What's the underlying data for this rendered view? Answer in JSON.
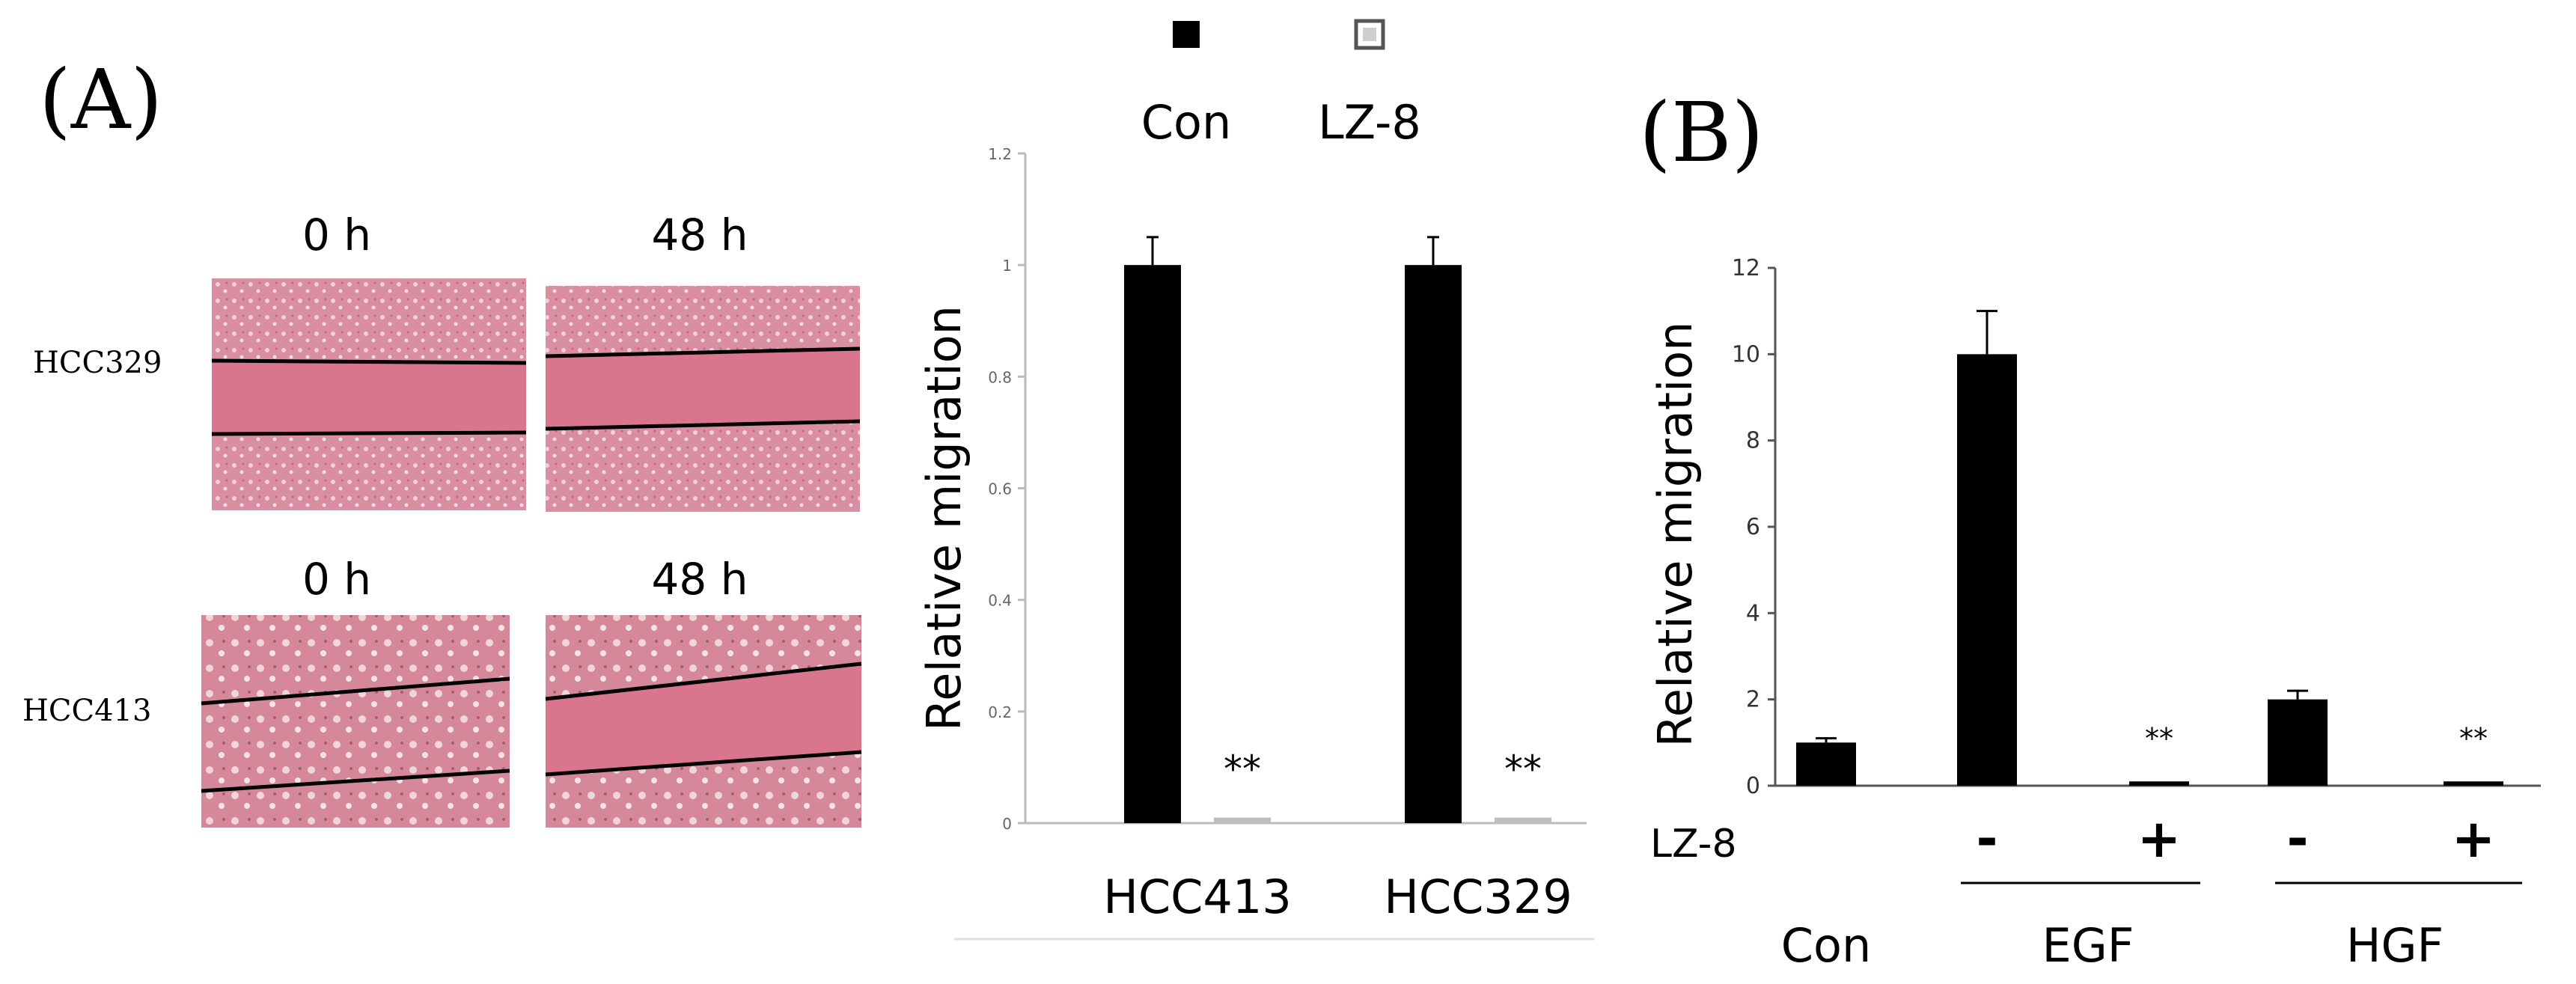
{
  "panel_a": {
    "label": "(A)",
    "time_labels": [
      "0 h",
      "48 h",
      "0 h",
      "48 h"
    ],
    "row_labels": [
      "HCC329",
      "HCC413"
    ]
  },
  "panel_b": {
    "label": "(B)"
  },
  "colors": {
    "con": "#000000",
    "lz8": "#bfbfbf",
    "tissue": "#d98ea2",
    "gap": "#d9768e"
  },
  "chart_data": [
    {
      "type": "bar",
      "categories": [
        "HCC413",
        "HCC329"
      ],
      "series": [
        {
          "name": "Con",
          "values": [
            1.0,
            1.0
          ],
          "errors": [
            0.05,
            0.05
          ]
        },
        {
          "name": "LZ-8",
          "values": [
            0.01,
            0.01
          ],
          "errors": [
            0,
            0
          ]
        }
      ],
      "ylabel": "Relative migration",
      "ylim": [
        0,
        1.2
      ],
      "yticks": [
        "0",
        "0.2",
        "0.4",
        "0.6",
        "0.8",
        "1",
        "1.2"
      ],
      "annotations": [
        "**",
        "**"
      ],
      "legend": "top"
    },
    {
      "type": "bar",
      "groups": [
        "Con",
        "EGF",
        "HGF"
      ],
      "treatment_row_label": "LZ-8",
      "treatment_signs": [
        "-",
        "+",
        "-",
        "+"
      ],
      "values": [
        1.0,
        10.0,
        0.1,
        2.0,
        0.1
      ],
      "errors": [
        0.1,
        1.0,
        0,
        0.2,
        0
      ],
      "ylabel": "Relative migration",
      "ylim": [
        0,
        12
      ],
      "yticks": [
        "0",
        "2",
        "4",
        "6",
        "8",
        "10",
        "12"
      ],
      "annotations": [
        "**",
        "**"
      ]
    }
  ]
}
